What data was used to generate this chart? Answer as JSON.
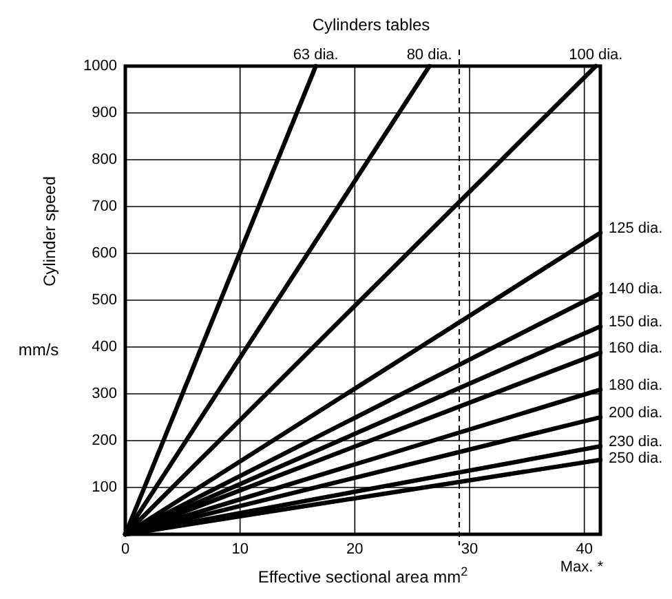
{
  "chart_data": {
    "type": "line",
    "title": "Cylinders tables",
    "xlabel": "Effective sectional area mm$^{2}$",
    "ylabel": "Cylinder speed mm/s",
    "xlim": [
      0,
      41.4
    ],
    "ylim": [
      0,
      1000
    ],
    "xticks": [
      0,
      10,
      20,
      30,
      40
    ],
    "yticks": [
      100,
      200,
      300,
      400,
      500,
      600,
      700,
      800,
      900,
      1000
    ],
    "grid": true,
    "ref_lines": [
      {
        "axis": "x",
        "value": 29.1,
        "line_style": "dashed",
        "color": "#000000"
      }
    ],
    "annotations": [
      "Max. *"
    ],
    "series": [
      {
        "name": "63 dia.",
        "color": "#000000",
        "x": [
          0,
          16.6
        ],
        "values": [
          0,
          1000
        ]
      },
      {
        "name": "80 dia.",
        "color": "#000000",
        "x": [
          0,
          26.5
        ],
        "values": [
          0,
          1000
        ]
      },
      {
        "name": "100 dia.",
        "color": "#000000",
        "x": [
          0,
          41
        ],
        "values": [
          0,
          1000
        ]
      },
      {
        "name": "125 dia.",
        "color": "#000000",
        "x": [
          0,
          41.4
        ],
        "values": [
          0,
          644
        ]
      },
      {
        "name": "140 dia.",
        "color": "#000000",
        "x": [
          0,
          41.4
        ],
        "values": [
          0,
          515
        ]
      },
      {
        "name": "150 dia.",
        "color": "#000000",
        "x": [
          0,
          41.4
        ],
        "values": [
          0,
          444
        ]
      },
      {
        "name": "160 dia.",
        "color": "#000000",
        "x": [
          0,
          41.4
        ],
        "values": [
          0,
          388
        ]
      },
      {
        "name": "180 dia.",
        "color": "#000000",
        "x": [
          0,
          41.4
        ],
        "values": [
          0,
          309
        ]
      },
      {
        "name": "200 dia.",
        "color": "#000000",
        "x": [
          0,
          41.4
        ],
        "values": [
          0,
          250
        ]
      },
      {
        "name": "230 dia.",
        "color": "#000000",
        "x": [
          0,
          41.4
        ],
        "values": [
          0,
          188
        ]
      },
      {
        "name": "250 dia.",
        "color": "#000000",
        "x": [
          0,
          41.4
        ],
        "values": [
          0,
          159
        ]
      }
    ]
  }
}
